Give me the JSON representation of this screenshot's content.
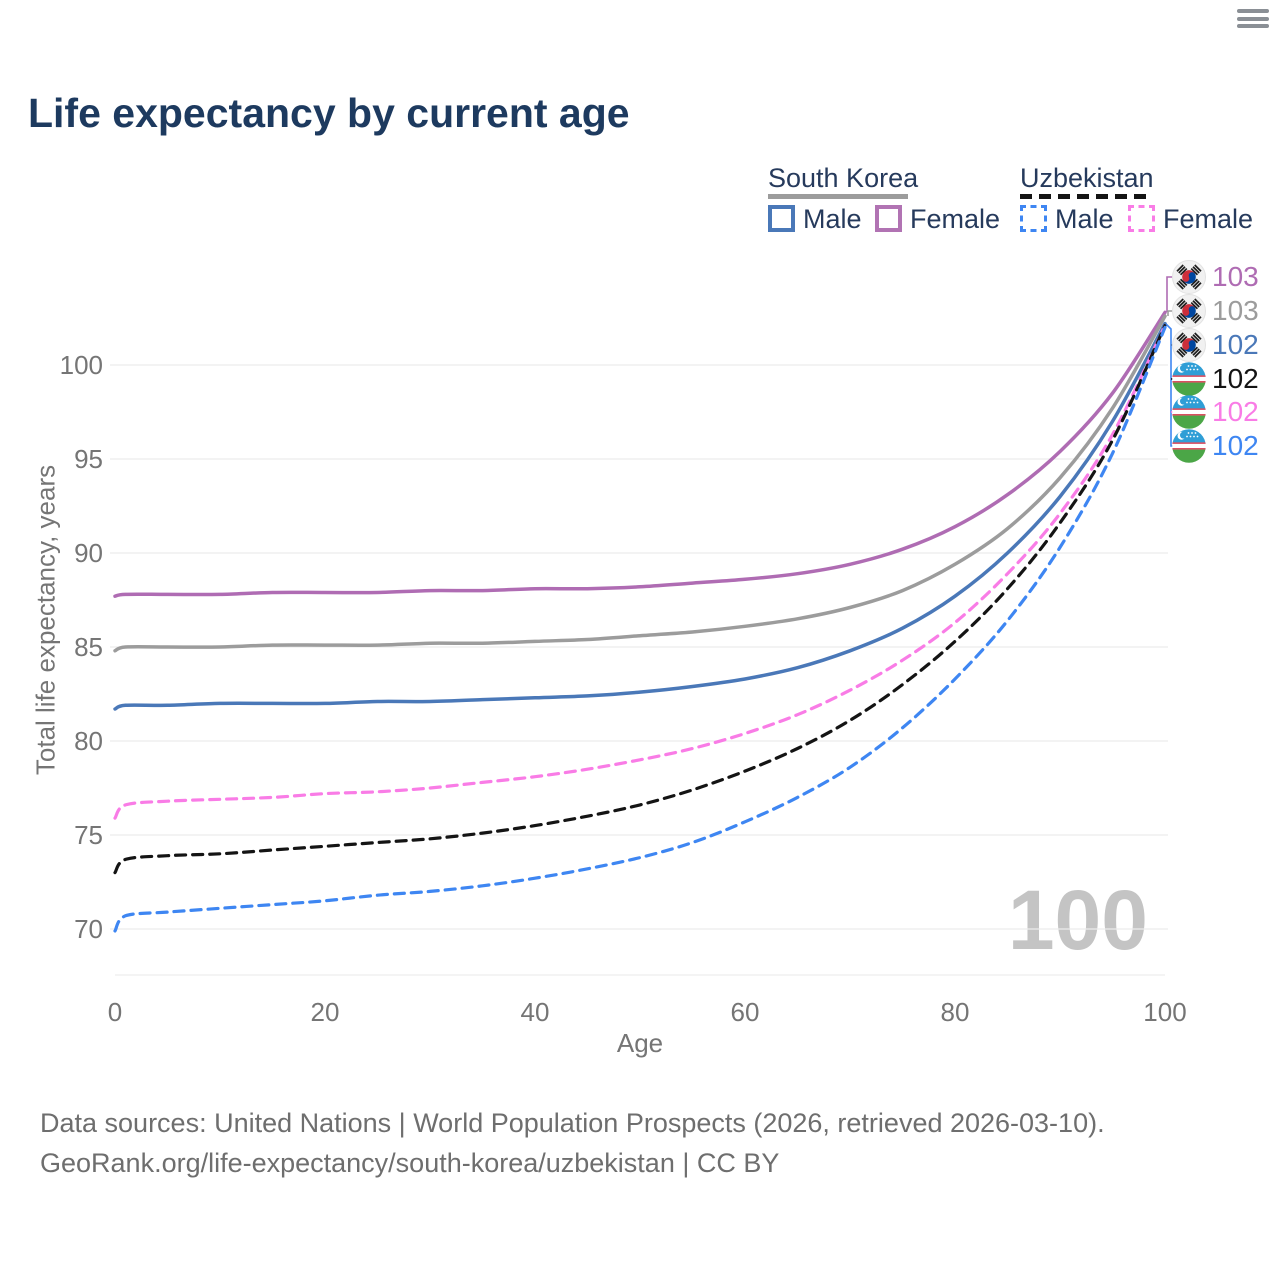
{
  "title": "Life expectancy by current age",
  "window": {
    "menu_icon": "hamburger-menu-icon"
  },
  "legend": {
    "groups": [
      {
        "label": "South Korea",
        "style": "solid",
        "color": "#9c9c9c",
        "items": [
          {
            "label": "Male",
            "color": "#4a78b8"
          },
          {
            "label": "Female",
            "color": "#b173b3"
          }
        ]
      },
      {
        "label": "Uzbekistan",
        "style": "dashed",
        "color": "#141414",
        "items": [
          {
            "label": "Male",
            "color": "#3e86f2"
          },
          {
            "label": "Female",
            "color": "#f97ce6"
          }
        ]
      }
    ]
  },
  "chart_data": {
    "type": "line",
    "title": "Life expectancy by current age",
    "xlabel": "Age",
    "ylabel": "Total life expectancy, years",
    "xticks": [
      0,
      20,
      40,
      60,
      80,
      100
    ],
    "yticks": [
      70,
      75,
      80,
      85,
      90,
      95,
      100
    ],
    "xlim": [
      0,
      100
    ],
    "ylim": [
      67.5,
      104
    ],
    "grid": "horizontal",
    "watermark": "100",
    "x": [
      0,
      1,
      5,
      10,
      15,
      20,
      25,
      30,
      35,
      40,
      45,
      50,
      55,
      60,
      65,
      70,
      75,
      80,
      85,
      90,
      95,
      100
    ],
    "series": [
      {
        "name": "South Korea Female",
        "country": "South Korea",
        "sex": "Female",
        "color": "#af6cb3",
        "dashed": false,
        "values": [
          87.7,
          87.8,
          87.8,
          87.8,
          87.9,
          87.9,
          87.9,
          88.0,
          88.0,
          88.1,
          88.1,
          88.2,
          88.4,
          88.6,
          88.9,
          89.4,
          90.2,
          91.4,
          93.1,
          95.4,
          98.5,
          102.8
        ]
      },
      {
        "name": "South Korea",
        "country": "South Korea",
        "sex": "All",
        "color": "#9c9c9c",
        "dashed": false,
        "values": [
          84.8,
          85.0,
          85.0,
          85.0,
          85.1,
          85.1,
          85.1,
          85.2,
          85.2,
          85.3,
          85.4,
          85.6,
          85.8,
          86.1,
          86.5,
          87.1,
          88.0,
          89.4,
          91.3,
          94.0,
          97.7,
          102.6
        ]
      },
      {
        "name": "South Korea Male",
        "country": "South Korea",
        "sex": "Male",
        "color": "#4a78b8",
        "dashed": false,
        "values": [
          81.7,
          81.9,
          81.9,
          82.0,
          82.0,
          82.0,
          82.1,
          82.1,
          82.2,
          82.3,
          82.4,
          82.6,
          82.9,
          83.3,
          83.9,
          84.8,
          86.0,
          87.7,
          90.0,
          93.0,
          97.0,
          102.2
        ]
      },
      {
        "name": "Uzbekistan Female",
        "country": "Uzbekistan",
        "sex": "Female",
        "color": "#f97ce6",
        "dashed": true,
        "values": [
          75.9,
          76.6,
          76.8,
          76.9,
          77.0,
          77.2,
          77.3,
          77.5,
          77.8,
          78.1,
          78.5,
          79.0,
          79.6,
          80.4,
          81.4,
          82.7,
          84.3,
          86.3,
          88.9,
          92.1,
          96.3,
          102.1
        ]
      },
      {
        "name": "Uzbekistan",
        "country": "Uzbekistan",
        "sex": "All",
        "color": "#141414",
        "dashed": true,
        "values": [
          73.0,
          73.7,
          73.9,
          74.0,
          74.2,
          74.4,
          74.6,
          74.8,
          75.1,
          75.5,
          76.0,
          76.6,
          77.4,
          78.4,
          79.6,
          81.1,
          83.0,
          85.3,
          88.1,
          91.6,
          96.0,
          102.1
        ]
      },
      {
        "name": "Uzbekistan Male",
        "country": "Uzbekistan",
        "sex": "Male",
        "color": "#3e86f2",
        "dashed": true,
        "values": [
          69.9,
          70.7,
          70.9,
          71.1,
          71.3,
          71.5,
          71.8,
          72.0,
          72.3,
          72.7,
          73.2,
          73.8,
          74.6,
          75.7,
          77.0,
          78.6,
          80.7,
          83.3,
          86.4,
          90.3,
          95.3,
          102.0
        ]
      }
    ],
    "end_labels": [
      {
        "value": "103",
        "series": "South Korea Female",
        "flag": "south-korea",
        "color": "#af6cb3"
      },
      {
        "value": "103",
        "series": "South Korea",
        "flag": "south-korea",
        "color": "#9c9c9c"
      },
      {
        "value": "102",
        "series": "South Korea Male",
        "flag": "south-korea",
        "color": "#4a78b8"
      },
      {
        "value": "102",
        "series": "Uzbekistan",
        "flag": "uzbekistan",
        "color": "#141414"
      },
      {
        "value": "102",
        "series": "Uzbekistan Female",
        "flag": "uzbekistan",
        "color": "#f97ce6"
      },
      {
        "value": "102",
        "series": "Uzbekistan Male",
        "flag": "uzbekistan",
        "color": "#3e86f2"
      }
    ]
  },
  "footer": {
    "line1": "Data sources: United Nations | World Population Prospects (2026, retrieved 2026-03-10).",
    "line2": "GeoRank.org/life-expectancy/south-korea/uzbekistan | CC BY"
  }
}
